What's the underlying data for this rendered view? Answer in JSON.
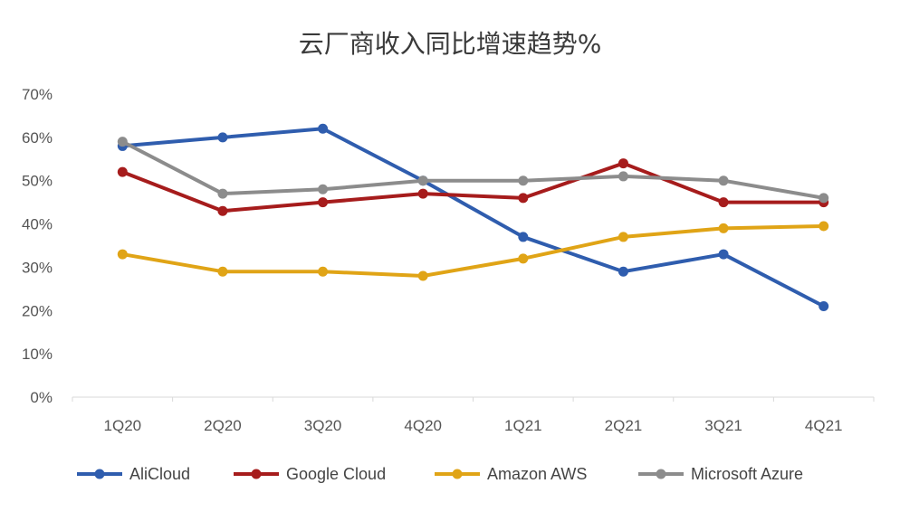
{
  "chart_data": {
    "type": "line",
    "title": "云厂商收入同比增速趋势%",
    "xlabel": "",
    "ylabel": "",
    "categories": [
      "1Q20",
      "2Q20",
      "3Q20",
      "4Q20",
      "1Q21",
      "2Q21",
      "3Q21",
      "4Q21"
    ],
    "ylim": [
      0,
      70
    ],
    "yticks": [
      0,
      10,
      20,
      30,
      40,
      50,
      60,
      70
    ],
    "ytick_labels": [
      "0%",
      "10%",
      "20%",
      "30%",
      "40%",
      "50%",
      "60%",
      "70%"
    ],
    "grid": false,
    "legend_position": "bottom",
    "series": [
      {
        "name": "AliCloud",
        "color": "#2F5DAE",
        "values": [
          58,
          60,
          62,
          50,
          37,
          29,
          33,
          21
        ]
      },
      {
        "name": "Google Cloud",
        "color": "#A61C1C",
        "values": [
          52,
          43,
          45,
          47,
          46,
          54,
          45,
          45
        ]
      },
      {
        "name": "Amazon AWS",
        "color": "#E0A416",
        "values": [
          33,
          29,
          29,
          28,
          32,
          37,
          39,
          39.5
        ]
      },
      {
        "name": "Microsoft Azure",
        "color": "#8C8C8C",
        "values": [
          59,
          47,
          48,
          50,
          50,
          51,
          50,
          46
        ]
      }
    ]
  }
}
